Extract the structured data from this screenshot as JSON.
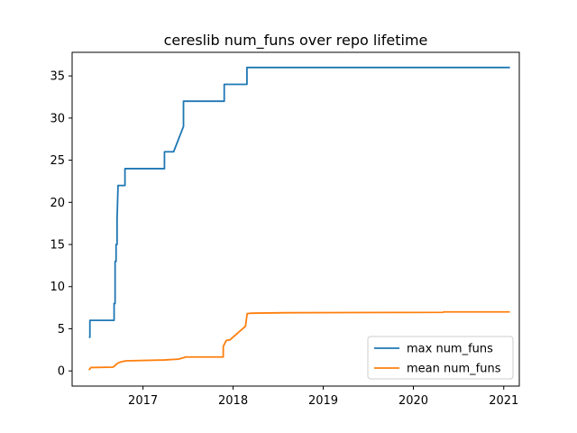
{
  "chart_data": {
    "type": "line",
    "title": "cereslib num_funs over repo lifetime",
    "xlabel": "",
    "ylabel": "",
    "x_axis": "date",
    "xlim": [
      "2016-03-20",
      "2021-03-05"
    ],
    "ylim": [
      -1.8,
      37.8
    ],
    "xticks": [
      {
        "date": "2017-01-01",
        "label": "2017"
      },
      {
        "date": "2018-01-01",
        "label": "2018"
      },
      {
        "date": "2019-01-01",
        "label": "2019"
      },
      {
        "date": "2020-01-01",
        "label": "2020"
      },
      {
        "date": "2021-01-01",
        "label": "2021"
      }
    ],
    "yticks": [
      0,
      5,
      10,
      15,
      20,
      25,
      30,
      35
    ],
    "grid": false,
    "legend_position": "lower right",
    "series": [
      {
        "name": "max num_funs",
        "color": "#1f77b4",
        "points": [
          [
            "2016-05-27",
            4
          ],
          [
            "2016-05-31",
            4
          ],
          [
            "2016-05-31",
            6
          ],
          [
            "2016-09-06",
            6
          ],
          [
            "2016-09-06",
            8
          ],
          [
            "2016-09-10",
            8
          ],
          [
            "2016-09-10",
            13
          ],
          [
            "2016-09-14",
            13
          ],
          [
            "2016-09-14",
            15
          ],
          [
            "2016-09-18",
            15
          ],
          [
            "2016-09-18",
            18
          ],
          [
            "2016-09-22",
            22
          ],
          [
            "2016-10-20",
            22
          ],
          [
            "2016-10-20",
            24
          ],
          [
            "2017-03-29",
            24
          ],
          [
            "2017-03-29",
            26
          ],
          [
            "2017-05-05",
            26
          ],
          [
            "2017-06-14",
            29
          ],
          [
            "2017-06-14",
            32
          ],
          [
            "2017-11-26",
            32
          ],
          [
            "2017-11-26",
            34
          ],
          [
            "2018-02-26",
            34
          ],
          [
            "2018-02-26",
            36
          ],
          [
            "2021-01-26",
            36
          ]
        ]
      },
      {
        "name": "mean num_funs",
        "color": "#ff7f0e",
        "points": [
          [
            "2016-05-27",
            0.1
          ],
          [
            "2016-06-04",
            0.4
          ],
          [
            "2016-09-02",
            0.45
          ],
          [
            "2016-09-22",
            0.95
          ],
          [
            "2016-10-08",
            1.1
          ],
          [
            "2016-10-25",
            1.2
          ],
          [
            "2017-03-27",
            1.3
          ],
          [
            "2017-05-25",
            1.4
          ],
          [
            "2017-06-24",
            1.65
          ],
          [
            "2017-11-22",
            1.65
          ],
          [
            "2017-11-22",
            2.9
          ],
          [
            "2017-12-04",
            3.6
          ],
          [
            "2017-12-20",
            3.7
          ],
          [
            "2018-02-20",
            5.3
          ],
          [
            "2018-02-27",
            6.8
          ],
          [
            "2018-03-15",
            6.85
          ],
          [
            "2018-08-01",
            6.9
          ],
          [
            "2020-04-30",
            6.95
          ],
          [
            "2020-05-03",
            7.0
          ],
          [
            "2021-01-26",
            7.0
          ]
        ]
      }
    ]
  }
}
